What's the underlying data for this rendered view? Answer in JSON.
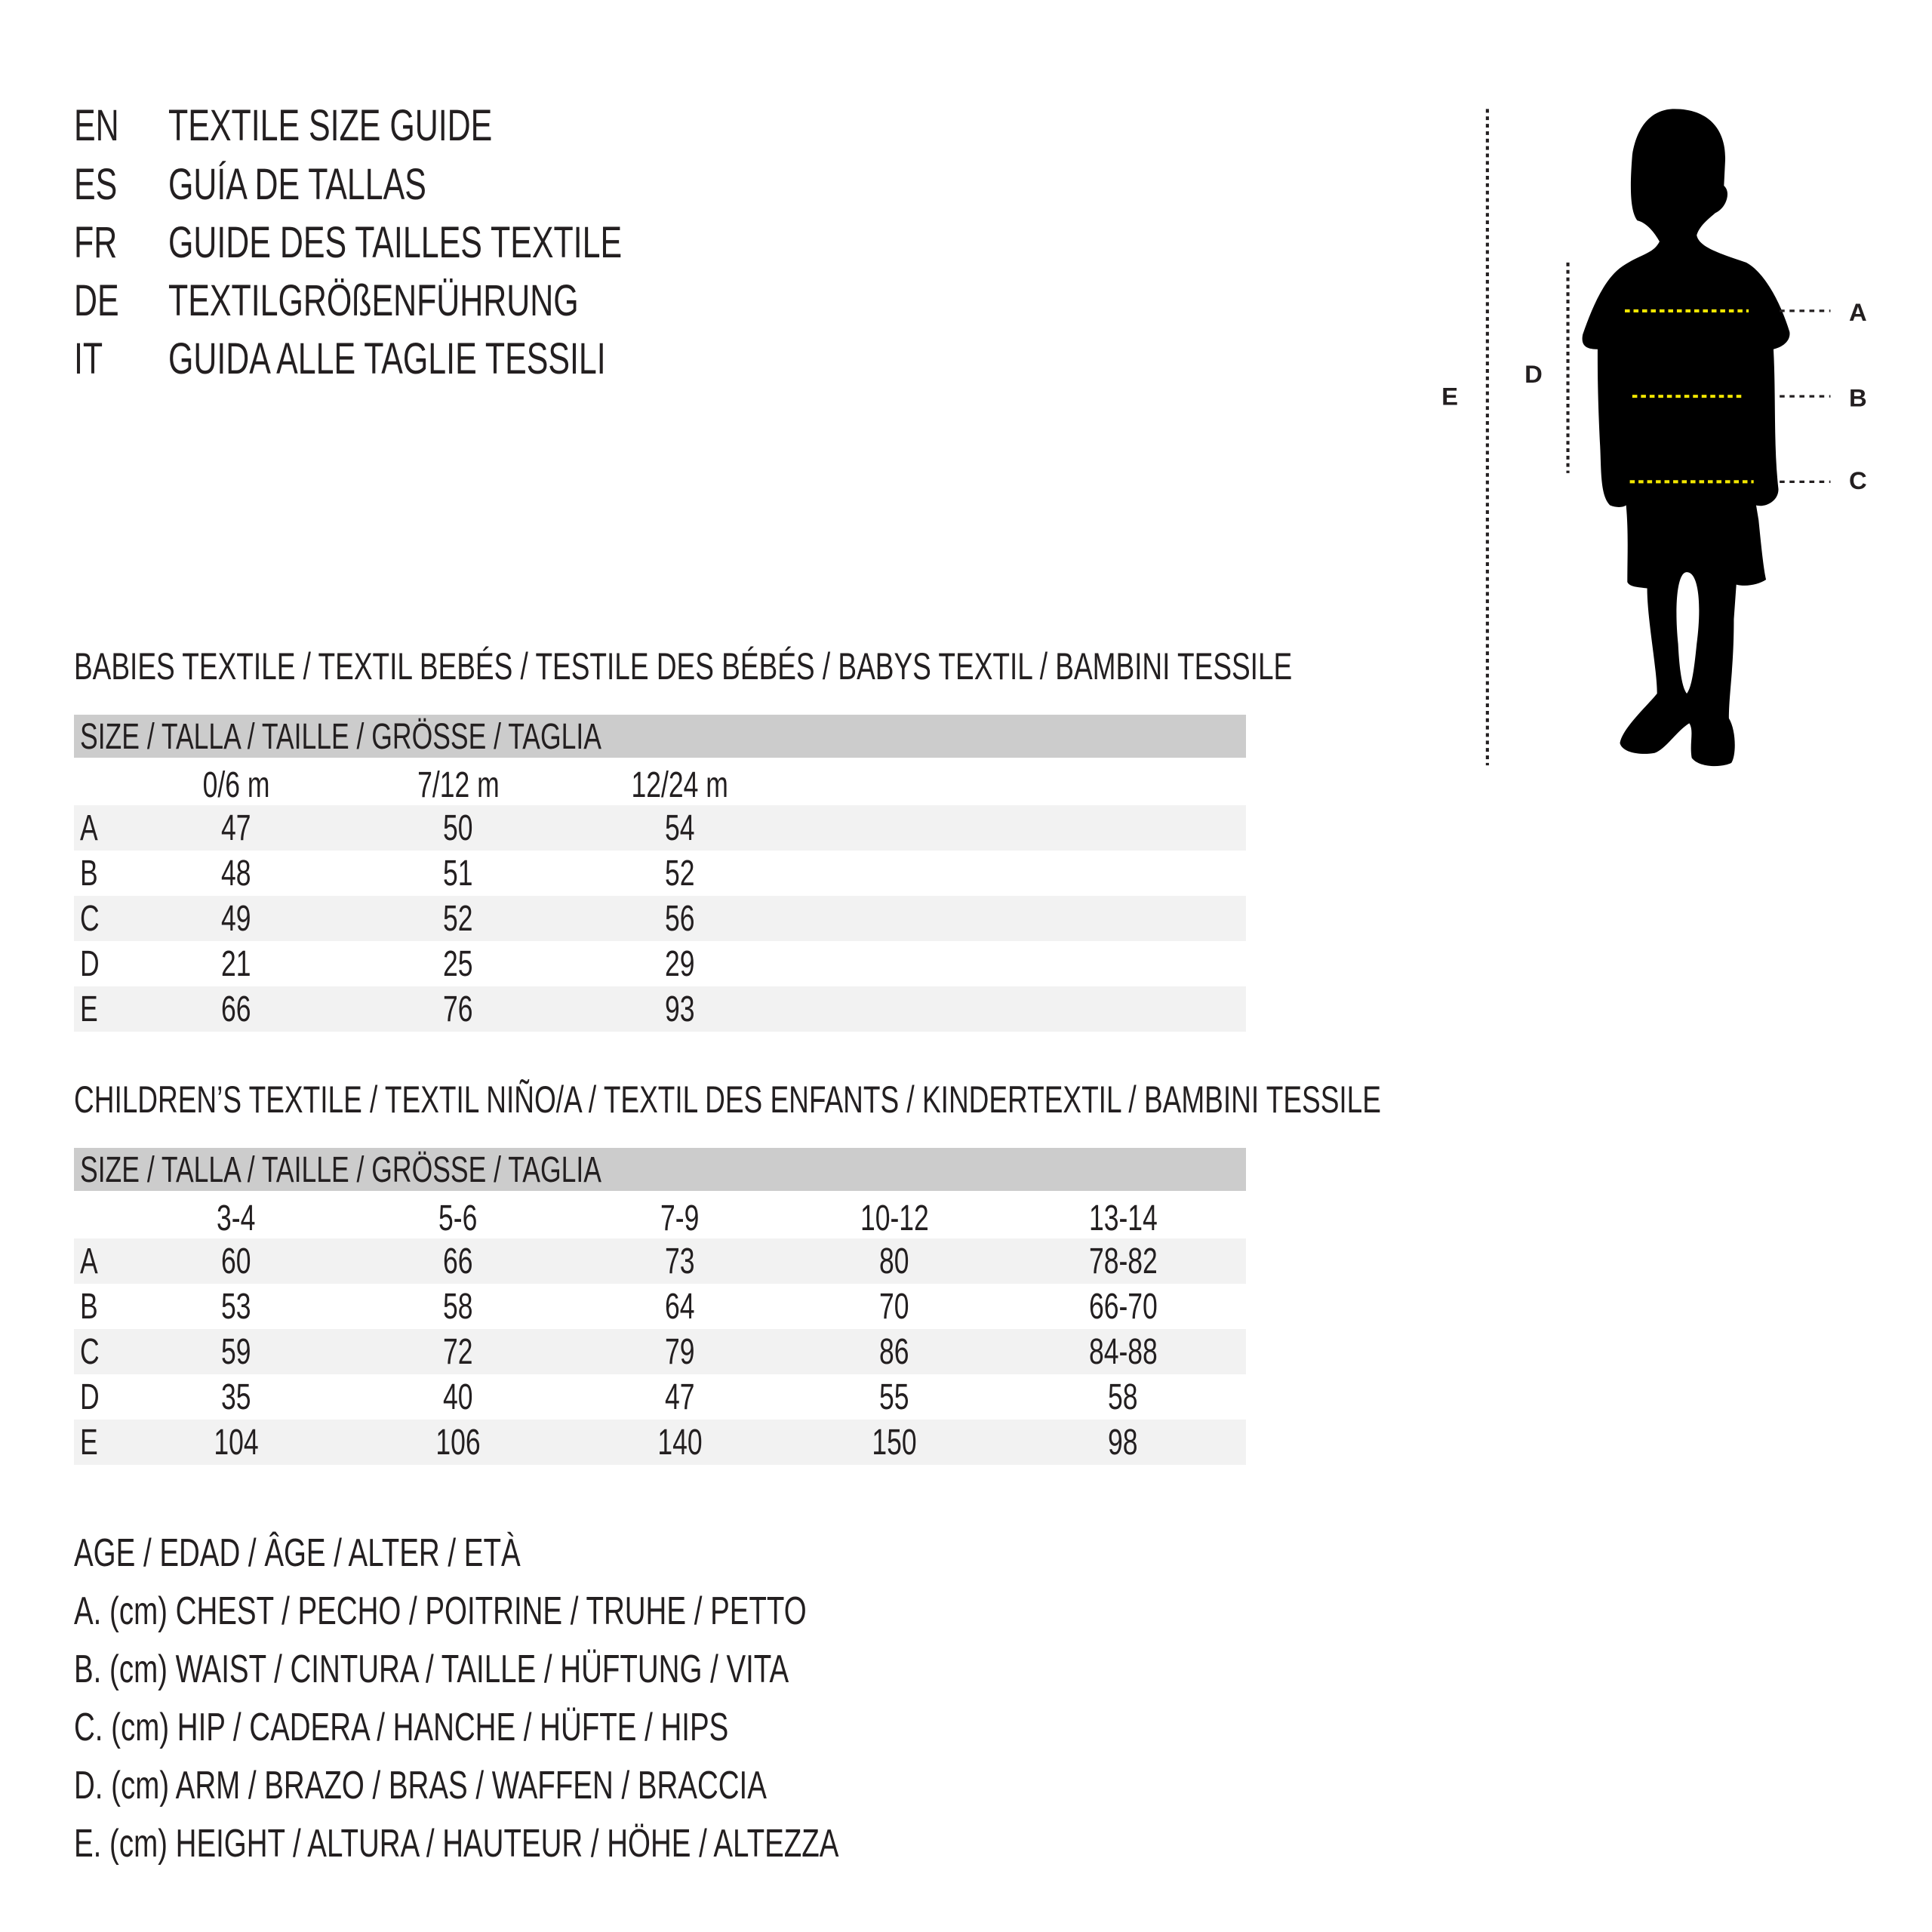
{
  "titles": [
    {
      "code": "EN",
      "text": "TEXTILE SIZE GUIDE"
    },
    {
      "code": "ES",
      "text": "GUÍA DE TALLAS"
    },
    {
      "code": "FR",
      "text": "GUIDE DES TAILLES TEXTILE"
    },
    {
      "code": "DE",
      "text": "TEXTILGRÖßENFÜHRUNG"
    },
    {
      "code": "IT",
      "text": "GUIDA ALLE TAGLIE TESSILI"
    }
  ],
  "figure": {
    "labels": {
      "A": "A",
      "B": "B",
      "C": "C",
      "D": "D",
      "E": "E"
    },
    "measure_line_color": "#f2e600"
  },
  "babies": {
    "heading": "BABIES TEXTILE / TEXTIL BEBÉS / TESTILE DES BÉBÉS / BABYS TEXTIL / BAMBINI TESSILE",
    "size_header": "SIZE / TALLA / TAILLE / GRÖSSE / TAGLIA",
    "columns": [
      "0/6 m",
      "7/12 m",
      "12/24 m"
    ],
    "rows": [
      {
        "label": "A",
        "values": [
          "47",
          "50",
          "54"
        ]
      },
      {
        "label": "B",
        "values": [
          "48",
          "51",
          "52"
        ]
      },
      {
        "label": "C",
        "values": [
          "49",
          "52",
          "56"
        ]
      },
      {
        "label": "D",
        "values": [
          "21",
          "25",
          "29"
        ]
      },
      {
        "label": "E",
        "values": [
          "66",
          "76",
          "93"
        ]
      }
    ]
  },
  "children": {
    "heading": "CHILDREN’S TEXTILE / TEXTIL NIÑO/A / TEXTIL DES ENFANTS / KINDERTEXTIL / BAMBINI TESSILE",
    "size_header": "SIZE / TALLA / TAILLE / GRÖSSE / TAGLIA",
    "columns": [
      "3-4",
      "5-6",
      "7-9",
      "10-12",
      "13-14"
    ],
    "rows": [
      {
        "label": "A",
        "values": [
          "60",
          "66",
          "73",
          "80",
          "78-82"
        ]
      },
      {
        "label": "B",
        "values": [
          "53",
          "58",
          "64",
          "70",
          "66-70"
        ]
      },
      {
        "label": "C",
        "values": [
          "59",
          "72",
          "79",
          "86",
          "84-88"
        ]
      },
      {
        "label": "D",
        "values": [
          "35",
          "40",
          "47",
          "55",
          "58"
        ]
      },
      {
        "label": "E",
        "values": [
          "104",
          "106",
          "140",
          "150",
          "98"
        ]
      }
    ]
  },
  "legend": [
    "AGE / EDAD / ÂGE / ALTER / ETÀ",
    "A. (cm) CHEST / PECHO / POITRINE / TRUHE / PETTO",
    "B. (cm) WAIST / CINTURA / TAILLE / HÜFTUNG / VITA",
    "C. (cm) HIP / CADERA / HANCHE / HÜFTE / HIPS",
    "D. (cm) ARM / BRAZO / BRAS / WAFFEN / BRACCIA",
    "E. (cm) HEIGHT / ALTURA / HAUTEUR / HÖHE / ALTEZZA"
  ]
}
